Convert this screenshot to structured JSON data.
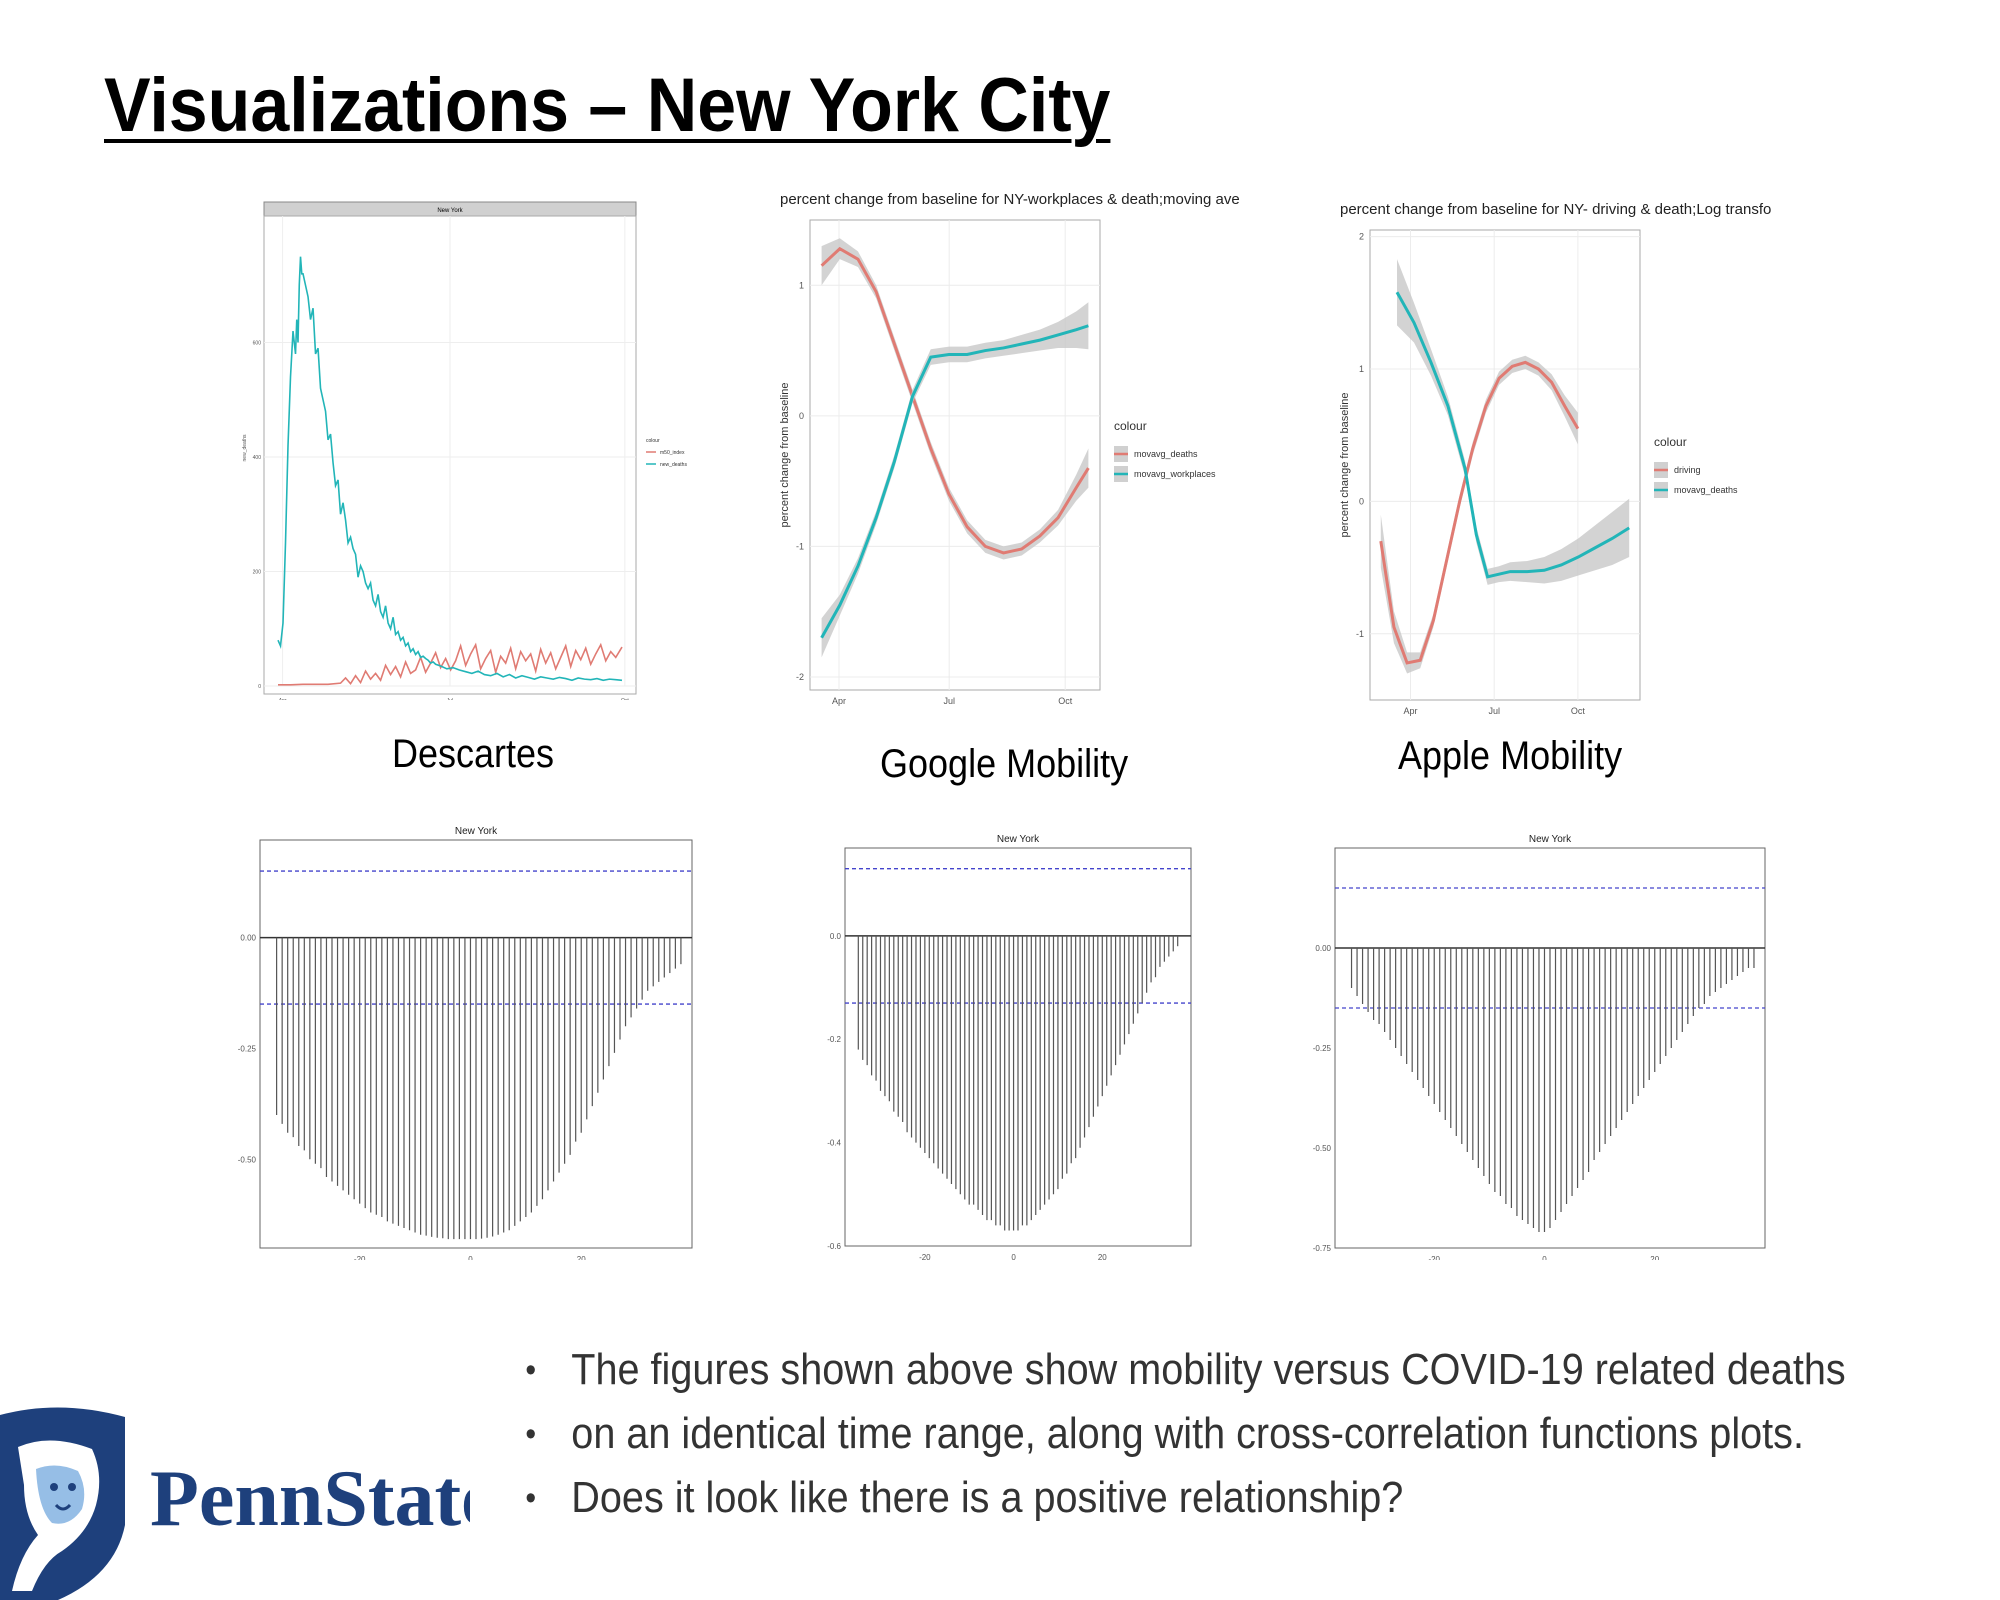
{
  "slide": {
    "title": "Visualizations – New York City",
    "captions": {
      "descartes": "Descartes",
      "google": "Google Mobility",
      "apple": "Apple Mobility"
    },
    "bullets": [
      "The figures shown above show mobility versus COVID-19 related deaths",
      "on an identical time range, along with cross-correlation functions plots.",
      "Does it look like there is a positive relationship?"
    ],
    "logo_text": "PennState",
    "colors": {
      "red": "#e07b73",
      "teal": "#22b5b8",
      "ci_band": "#c8c8c8",
      "ci_dash": "#4444cc",
      "logo_blue": "#1e407c",
      "logo_light": "#96bee6"
    }
  },
  "chart_data": [
    {
      "id": "descartes",
      "type": "line",
      "panel_title": "New York",
      "xlabel": "",
      "ylabel": "new_deaths",
      "x_ticks": [
        "Apr",
        "Jul",
        "Oct"
      ],
      "y_ticks": [
        "0",
        "200",
        "400",
        "600"
      ],
      "ylim": [
        0,
        800
      ],
      "legend": {
        "title": "colour",
        "entries": [
          "m50_index",
          "new_deaths"
        ],
        "placement": "right"
      },
      "series": [
        {
          "name": "m50_index",
          "x": [
            0,
            10,
            20,
            30,
            40,
            50,
            54,
            58,
            62,
            66,
            70,
            74,
            78,
            82,
            86,
            90,
            94,
            98,
            102,
            106,
            110,
            114,
            118,
            122,
            126,
            130,
            134,
            138,
            142,
            146,
            150,
            154,
            158,
            162,
            166,
            170,
            174,
            178,
            182,
            186,
            190,
            194,
            198,
            202,
            206,
            210,
            214,
            218,
            222,
            226,
            230,
            234,
            238,
            242,
            246,
            250,
            254,
            258,
            262,
            266,
            270,
            275
          ],
          "y": [
            2,
            2,
            3,
            3,
            3,
            5,
            14,
            4,
            18,
            6,
            26,
            12,
            22,
            10,
            36,
            20,
            34,
            16,
            42,
            22,
            28,
            50,
            24,
            40,
            58,
            32,
            48,
            28,
            44,
            70,
            36,
            56,
            72,
            30,
            48,
            62,
            24,
            52,
            40,
            66,
            30,
            60,
            44,
            56,
            26,
            64,
            40,
            58,
            30,
            50,
            70,
            34,
            62,
            46,
            66,
            38,
            56,
            72,
            44,
            60,
            50,
            68
          ]
        },
        {
          "name": "new_deaths",
          "x": [
            0,
            2,
            4,
            6,
            8,
            10,
            12,
            14,
            15,
            16,
            17,
            18,
            19,
            20,
            22,
            24,
            26,
            28,
            30,
            32,
            34,
            36,
            38,
            40,
            42,
            44,
            46,
            48,
            50,
            52,
            54,
            56,
            58,
            60,
            62,
            64,
            66,
            68,
            70,
            72,
            74,
            76,
            78,
            80,
            82,
            84,
            86,
            88,
            90,
            92,
            94,
            96,
            98,
            100,
            102,
            104,
            106,
            108,
            110,
            112,
            114,
            116,
            118,
            120,
            122,
            124,
            126,
            130,
            135,
            140,
            145,
            150,
            155,
            160,
            165,
            170,
            175,
            180,
            185,
            190,
            195,
            200,
            205,
            210,
            215,
            220,
            225,
            230,
            235,
            240,
            245,
            250,
            255,
            260,
            265,
            270,
            275
          ],
          "y": [
            80,
            70,
            110,
            250,
            420,
            540,
            620,
            580,
            640,
            600,
            700,
            750,
            720,
            720,
            700,
            680,
            640,
            660,
            580,
            590,
            520,
            500,
            480,
            430,
            440,
            390,
            350,
            360,
            300,
            320,
            290,
            250,
            260,
            240,
            230,
            190,
            210,
            200,
            180,
            170,
            180,
            150,
            140,
            160,
            130,
            120,
            140,
            110,
            100,
            120,
            90,
            95,
            80,
            85,
            70,
            75,
            60,
            65,
            55,
            60,
            50,
            52,
            48,
            45,
            40,
            42,
            38,
            35,
            30,
            32,
            28,
            25,
            22,
            26,
            20,
            18,
            22,
            16,
            20,
            14,
            18,
            15,
            12,
            16,
            14,
            12,
            15,
            13,
            10,
            14,
            12,
            11,
            13,
            10,
            12,
            11,
            10
          ]
        }
      ]
    },
    {
      "id": "google",
      "type": "line",
      "title": "percent change from baseline for NY-workplaces & death;moving ave",
      "xlabel": "",
      "ylabel": "percent change from baseline",
      "x_ticks": [
        "Apr",
        "Jul",
        "Oct"
      ],
      "y_ticks": [
        "1",
        "0",
        "-1",
        "-2"
      ],
      "ylim": [
        -2.1,
        1.5
      ],
      "legend": {
        "title": "colour",
        "entries": [
          "movavg_deaths",
          "movavg_workplaces"
        ],
        "placement": "right"
      },
      "series": [
        {
          "name": "movavg_deaths",
          "x": [
            0,
            15,
            30,
            45,
            60,
            75,
            90,
            105,
            120,
            135,
            150,
            165,
            180,
            195,
            210,
            220
          ],
          "y": [
            1.15,
            1.28,
            1.2,
            0.95,
            0.55,
            0.15,
            -0.25,
            -0.6,
            -0.85,
            -1.0,
            -1.05,
            -1.02,
            -0.92,
            -0.78,
            -0.55,
            -0.4
          ]
        },
        {
          "name": "movavg_workplaces",
          "x": [
            0,
            15,
            30,
            45,
            60,
            75,
            90,
            105,
            120,
            135,
            150,
            165,
            180,
            195,
            210,
            220
          ],
          "y": [
            -1.7,
            -1.45,
            -1.15,
            -0.78,
            -0.35,
            0.15,
            0.45,
            0.47,
            0.47,
            0.5,
            0.52,
            0.55,
            0.58,
            0.62,
            0.66,
            0.69
          ]
        }
      ],
      "ci_half_width": {
        "movavg_deaths": [
          0.15,
          0.08,
          0.06,
          0.05,
          0.05,
          0.05,
          0.05,
          0.05,
          0.05,
          0.05,
          0.05,
          0.05,
          0.05,
          0.06,
          0.1,
          0.15
        ],
        "movavg_workplaces": [
          0.15,
          0.08,
          0.06,
          0.05,
          0.05,
          0.05,
          0.06,
          0.06,
          0.06,
          0.06,
          0.06,
          0.07,
          0.08,
          0.1,
          0.14,
          0.18
        ]
      }
    },
    {
      "id": "apple",
      "type": "line",
      "title": "percent change from baseline for NY- driving & death;Log transfo",
      "xlabel": "",
      "ylabel": "percent change from baseline",
      "x_ticks": [
        "Apr",
        "Jul",
        "Oct"
      ],
      "y_ticks": [
        "2",
        "1",
        "0",
        "-1"
      ],
      "ylim": [
        -1.5,
        2.05
      ],
      "legend": {
        "title": "colour",
        "entries": [
          "driving",
          "movavg_deaths"
        ],
        "placement": "right"
      },
      "series": [
        {
          "name": "driving",
          "x": [
            0,
            10,
            20,
            30,
            40,
            50,
            60,
            70,
            80,
            90,
            100,
            110,
            120,
            130,
            140,
            150
          ],
          "y": [
            -0.3,
            -0.95,
            -1.22,
            -1.2,
            -0.9,
            -0.45,
            0.0,
            0.4,
            0.72,
            0.93,
            1.02,
            1.05,
            1.0,
            0.9,
            0.72,
            0.55
          ]
        },
        {
          "name": "movavg_deaths",
          "x": [
            0,
            15,
            30,
            45,
            60,
            70,
            80,
            90,
            100,
            115,
            130,
            145,
            160,
            175,
            190,
            205
          ],
          "y": [
            1.58,
            1.35,
            1.05,
            0.72,
            0.25,
            -0.25,
            -0.57,
            -0.55,
            -0.53,
            -0.53,
            -0.52,
            -0.48,
            -0.42,
            -0.35,
            -0.28,
            -0.2
          ]
        }
      ],
      "ci_half_width": {
        "driving": [
          0.2,
          0.12,
          0.08,
          0.06,
          0.05,
          0.05,
          0.05,
          0.05,
          0.05,
          0.05,
          0.05,
          0.05,
          0.05,
          0.06,
          0.08,
          0.12
        ],
        "movavg_deaths": [
          0.25,
          0.15,
          0.1,
          0.07,
          0.06,
          0.06,
          0.06,
          0.06,
          0.07,
          0.08,
          0.1,
          0.12,
          0.14,
          0.17,
          0.2,
          0.22
        ]
      }
    },
    {
      "id": "ccf-descartes",
      "type": "bar",
      "panel_title": "New York",
      "x_ticks": [
        "-20",
        "0",
        "20"
      ],
      "y_ticks": [
        "0.00",
        "-0.25",
        "-0.50"
      ],
      "ylim": [
        -0.7,
        0.22
      ],
      "conf_band": 0.15,
      "lags": [
        -35,
        -34,
        -33,
        -32,
        -31,
        -30,
        -29,
        -28,
        -27,
        -26,
        -25,
        -24,
        -23,
        -22,
        -21,
        -20,
        -19,
        -18,
        -17,
        -16,
        -15,
        -14,
        -13,
        -12,
        -11,
        -10,
        -9,
        -8,
        -7,
        -6,
        -5,
        -4,
        -3,
        -2,
        -1,
        0,
        1,
        2,
        3,
        4,
        5,
        6,
        7,
        8,
        9,
        10,
        11,
        12,
        13,
        14,
        15,
        16,
        17,
        18,
        19,
        20,
        21,
        22,
        23,
        24,
        25,
        26,
        27,
        28,
        29,
        30,
        31,
        32,
        33,
        34,
        35,
        36,
        37,
        38
      ],
      "values": [
        -0.4,
        -0.42,
        -0.44,
        -0.45,
        -0.47,
        -0.48,
        -0.5,
        -0.51,
        -0.52,
        -0.54,
        -0.55,
        -0.56,
        -0.57,
        -0.58,
        -0.59,
        -0.6,
        -0.61,
        -0.62,
        -0.625,
        -0.63,
        -0.64,
        -0.645,
        -0.65,
        -0.655,
        -0.66,
        -0.665,
        -0.67,
        -0.672,
        -0.675,
        -0.677,
        -0.678,
        -0.68,
        -0.68,
        -0.68,
        -0.68,
        -0.68,
        -0.68,
        -0.679,
        -0.677,
        -0.674,
        -0.67,
        -0.665,
        -0.66,
        -0.65,
        -0.64,
        -0.63,
        -0.62,
        -0.605,
        -0.59,
        -0.57,
        -0.55,
        -0.53,
        -0.51,
        -0.49,
        -0.46,
        -0.44,
        -0.41,
        -0.38,
        -0.35,
        -0.32,
        -0.29,
        -0.26,
        -0.23,
        -0.2,
        -0.18,
        -0.16,
        -0.14,
        -0.12,
        -0.11,
        -0.1,
        -0.09,
        -0.08,
        -0.07,
        -0.06
      ]
    },
    {
      "id": "ccf-google",
      "type": "bar",
      "panel_title": "New York",
      "x_ticks": [
        "-20",
        "0",
        "20"
      ],
      "y_ticks": [
        "0.0",
        "-0.2",
        "-0.4",
        "-0.6"
      ],
      "ylim": [
        -0.6,
        0.17
      ],
      "conf_band": 0.13,
      "lags": [
        -35,
        -34,
        -33,
        -32,
        -31,
        -30,
        -29,
        -28,
        -27,
        -26,
        -25,
        -24,
        -23,
        -22,
        -21,
        -20,
        -19,
        -18,
        -17,
        -16,
        -15,
        -14,
        -13,
        -12,
        -11,
        -10,
        -9,
        -8,
        -7,
        -6,
        -5,
        -4,
        -3,
        -2,
        -1,
        0,
        1,
        2,
        3,
        4,
        5,
        6,
        7,
        8,
        9,
        10,
        11,
        12,
        13,
        14,
        15,
        16,
        17,
        18,
        19,
        20,
        21,
        22,
        23,
        24,
        25,
        26,
        27,
        28,
        29,
        30,
        31,
        32,
        33,
        34,
        35,
        36,
        37
      ],
      "values": [
        -0.22,
        -0.24,
        -0.25,
        -0.27,
        -0.28,
        -0.3,
        -0.31,
        -0.32,
        -0.34,
        -0.35,
        -0.36,
        -0.38,
        -0.39,
        -0.4,
        -0.41,
        -0.42,
        -0.43,
        -0.44,
        -0.45,
        -0.46,
        -0.47,
        -0.48,
        -0.49,
        -0.5,
        -0.51,
        -0.52,
        -0.52,
        -0.53,
        -0.54,
        -0.55,
        -0.55,
        -0.56,
        -0.56,
        -0.57,
        -0.57,
        -0.57,
        -0.57,
        -0.56,
        -0.56,
        -0.55,
        -0.54,
        -0.53,
        -0.52,
        -0.51,
        -0.5,
        -0.49,
        -0.47,
        -0.46,
        -0.44,
        -0.43,
        -0.41,
        -0.39,
        -0.37,
        -0.35,
        -0.33,
        -0.31,
        -0.29,
        -0.27,
        -0.25,
        -0.23,
        -0.21,
        -0.19,
        -0.17,
        -0.15,
        -0.13,
        -0.11,
        -0.09,
        -0.08,
        -0.06,
        -0.05,
        -0.04,
        -0.03,
        -0.02
      ]
    },
    {
      "id": "ccf-apple",
      "type": "bar",
      "panel_title": "New York",
      "x_ticks": [
        "-20",
        "0",
        "20"
      ],
      "y_ticks": [
        "0.00",
        "-0.25",
        "-0.50",
        "-0.75"
      ],
      "ylim": [
        -0.75,
        0.25
      ],
      "conf_band": 0.15,
      "lags": [
        -35,
        -34,
        -33,
        -32,
        -31,
        -30,
        -29,
        -28,
        -27,
        -26,
        -25,
        -24,
        -23,
        -22,
        -21,
        -20,
        -19,
        -18,
        -17,
        -16,
        -15,
        -14,
        -13,
        -12,
        -11,
        -10,
        -9,
        -8,
        -7,
        -6,
        -5,
        -4,
        -3,
        -2,
        -1,
        0,
        1,
        2,
        3,
        4,
        5,
        6,
        7,
        8,
        9,
        10,
        11,
        12,
        13,
        14,
        15,
        16,
        17,
        18,
        19,
        20,
        21,
        22,
        23,
        24,
        25,
        26,
        27,
        28,
        29,
        30,
        31,
        32,
        33,
        34,
        35,
        36,
        37,
        38
      ],
      "values": [
        -0.1,
        -0.12,
        -0.14,
        -0.16,
        -0.18,
        -0.19,
        -0.21,
        -0.23,
        -0.25,
        -0.27,
        -0.29,
        -0.31,
        -0.33,
        -0.35,
        -0.37,
        -0.39,
        -0.41,
        -0.43,
        -0.45,
        -0.47,
        -0.49,
        -0.51,
        -0.53,
        -0.55,
        -0.57,
        -0.59,
        -0.61,
        -0.62,
        -0.64,
        -0.65,
        -0.67,
        -0.68,
        -0.69,
        -0.7,
        -0.71,
        -0.71,
        -0.7,
        -0.68,
        -0.66,
        -0.64,
        -0.62,
        -0.6,
        -0.58,
        -0.56,
        -0.53,
        -0.51,
        -0.49,
        -0.47,
        -0.45,
        -0.43,
        -0.41,
        -0.39,
        -0.37,
        -0.35,
        -0.33,
        -0.31,
        -0.29,
        -0.27,
        -0.25,
        -0.23,
        -0.21,
        -0.19,
        -0.17,
        -0.15,
        -0.14,
        -0.12,
        -0.11,
        -0.1,
        -0.09,
        -0.08,
        -0.07,
        -0.06,
        -0.05,
        -0.05
      ]
    }
  ]
}
